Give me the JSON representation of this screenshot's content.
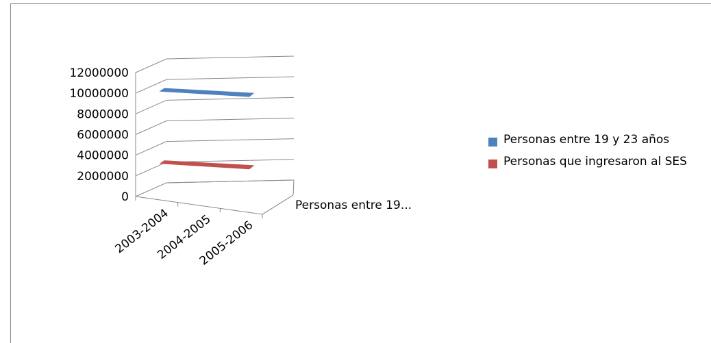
{
  "chart_data": {
    "type": "line",
    "categories": [
      "2003-2004",
      "2004-2005",
      "2005-2006"
    ],
    "depth_label": "Personas entre 19...",
    "series": [
      {
        "name": "Personas entre 19 y 23 años",
        "values": [
          10000000,
          10000000,
          10000000
        ],
        "color": "#4F81BD"
      },
      {
        "name": "Personas que ingresaron al SES",
        "values": [
          3000000,
          3000000,
          3000000
        ],
        "color": "#C0504D"
      }
    ],
    "ylim": [
      0,
      12000000
    ],
    "yticks": [
      "0",
      "2000000",
      "4000000",
      "6000000",
      "8000000",
      "10000000",
      "12000000"
    ],
    "grid": true,
    "legend": "right"
  }
}
